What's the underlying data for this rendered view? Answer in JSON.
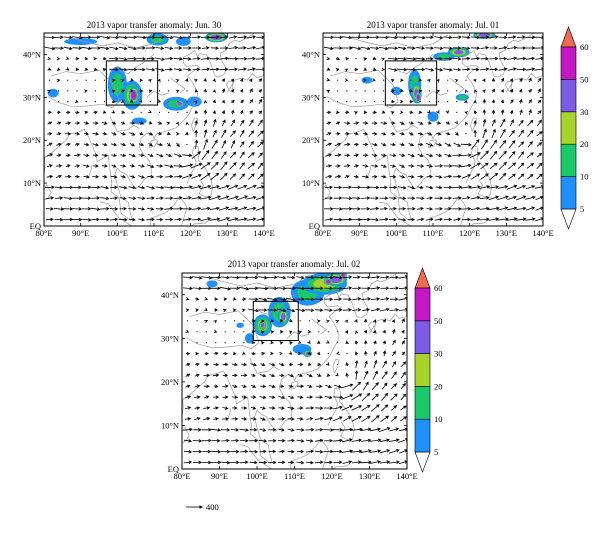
{
  "panels": [
    {
      "id": "jun30",
      "title": "2013 vapor transfer anomaly: Jun. 30",
      "box": [
        97,
        28.2,
        111,
        38.5
      ],
      "blobs": [
        {
          "lon": 100,
          "lat": 33,
          "rx": 2.6,
          "ry": 4.2,
          "level": 10
        },
        {
          "lon": 104,
          "lat": 30.5,
          "rx": 2.8,
          "ry": 3.4,
          "level": 20
        },
        {
          "lon": 104.5,
          "lat": 30.5,
          "rx": 1.4,
          "ry": 2.0,
          "level": 50
        },
        {
          "lon": 116,
          "lat": 28.5,
          "rx": 3.5,
          "ry": 1.6,
          "level": 10
        },
        {
          "lon": 117,
          "lat": 28.5,
          "rx": 1.2,
          "ry": 0.9,
          "level": 40
        },
        {
          "lon": 121,
          "lat": 29,
          "rx": 2.0,
          "ry": 1.2,
          "level": 5
        },
        {
          "lon": 111,
          "lat": 43.5,
          "rx": 3.0,
          "ry": 1.4,
          "level": 10
        },
        {
          "lon": 127,
          "lat": 44,
          "rx": 3.0,
          "ry": 1.2,
          "level": 40
        },
        {
          "lon": 90,
          "lat": 43,
          "rx": 4.5,
          "ry": 0.8,
          "level": 5
        },
        {
          "lon": 82.5,
          "lat": 31,
          "rx": 1.5,
          "ry": 1.0,
          "level": 5
        },
        {
          "lon": 106,
          "lat": 24.5,
          "rx": 2.0,
          "ry": 0.8,
          "level": 5
        },
        {
          "lon": 118,
          "lat": 43,
          "rx": 2.0,
          "ry": 1.0,
          "level": 5
        }
      ]
    },
    {
      "id": "jul01",
      "title": "2013 vapor transfer anomaly: Jul. 01",
      "box": [
        97,
        28.2,
        111,
        38.5
      ],
      "blobs": [
        {
          "lon": 105,
          "lat": 33,
          "rx": 1.8,
          "ry": 3.5,
          "level": 10
        },
        {
          "lon": 105.5,
          "lat": 31,
          "rx": 1.4,
          "ry": 2.4,
          "level": 30
        },
        {
          "lon": 106,
          "lat": 30,
          "rx": 0.8,
          "ry": 1.4,
          "level": 50
        },
        {
          "lon": 100,
          "lat": 31.5,
          "rx": 1.4,
          "ry": 1.0,
          "level": 5
        },
        {
          "lon": 113,
          "lat": 39.5,
          "rx": 3.0,
          "ry": 1.0,
          "level": 10
        },
        {
          "lon": 117,
          "lat": 40.5,
          "rx": 3.0,
          "ry": 1.2,
          "level": 30
        },
        {
          "lon": 124,
          "lat": 44.5,
          "rx": 3.0,
          "ry": 0.9,
          "level": 40
        },
        {
          "lon": 92,
          "lat": 34,
          "rx": 1.5,
          "ry": 0.8,
          "level": 5
        },
        {
          "lon": 118,
          "lat": 30,
          "rx": 1.8,
          "ry": 0.8,
          "level": 10
        },
        {
          "lon": 110,
          "lat": 25.5,
          "rx": 1.5,
          "ry": 1.2,
          "level": 5
        }
      ]
    },
    {
      "id": "jul02",
      "title": "2013 vapor transfer anomaly: Jul. 02",
      "box": [
        99,
        29.5,
        111,
        38.5
      ],
      "blobs": [
        {
          "lon": 106,
          "lat": 36,
          "rx": 3.0,
          "ry": 3.5,
          "level": 10
        },
        {
          "lon": 107,
          "lat": 35,
          "rx": 1.4,
          "ry": 2.0,
          "level": 30
        },
        {
          "lon": 101.5,
          "lat": 33,
          "rx": 2.5,
          "ry": 2.5,
          "level": 20
        },
        {
          "lon": 101.5,
          "lat": 33,
          "rx": 1.0,
          "ry": 1.0,
          "level": 40
        },
        {
          "lon": 113.5,
          "lat": 40.5,
          "rx": 4.5,
          "ry": 3.0,
          "level": 10
        },
        {
          "lon": 118,
          "lat": 42.5,
          "rx": 6.0,
          "ry": 2.5,
          "level": 20
        },
        {
          "lon": 121,
          "lat": 43.5,
          "rx": 3.0,
          "ry": 1.5,
          "level": 40
        },
        {
          "lon": 119,
          "lat": 43,
          "rx": 1.2,
          "ry": 0.8,
          "level": 50
        },
        {
          "lon": 123,
          "lat": 44.5,
          "rx": 1.0,
          "ry": 0.7,
          "level": 50
        },
        {
          "lon": 112,
          "lat": 27.5,
          "rx": 2.5,
          "ry": 1.2,
          "level": 5
        },
        {
          "lon": 113.5,
          "lat": 26.5,
          "rx": 1.2,
          "ry": 0.8,
          "level": 30
        },
        {
          "lon": 98,
          "lat": 30,
          "rx": 1.2,
          "ry": 1.2,
          "level": 5
        },
        {
          "lon": 95.5,
          "lat": 33,
          "rx": 1.0,
          "ry": 0.6,
          "level": 5
        },
        {
          "lon": 88,
          "lat": 42.5,
          "rx": 1.5,
          "ry": 0.8,
          "level": 5
        }
      ]
    }
  ],
  "lon_ticks": [
    "80°E",
    "90°E",
    "100°E",
    "110°E",
    "120°E",
    "130°E",
    "140°E"
  ],
  "lat_ticks": [
    "EQ",
    "10°N",
    "20°N",
    "30°N",
    "40°N"
  ],
  "colorbar": {
    "ticks": [
      "5",
      "10",
      "20",
      "30",
      "50",
      "60"
    ],
    "colors": [
      "#ffffff",
      "#1e90ff",
      "#19c869",
      "#a6d42a",
      "#7b5ce6",
      "#c418c4",
      "#ee6a50"
    ]
  },
  "reference_vector": {
    "label": "400"
  },
  "colors": {
    "land": "#9b9b9b",
    "vector": "#000000",
    "frame": "#000000"
  }
}
